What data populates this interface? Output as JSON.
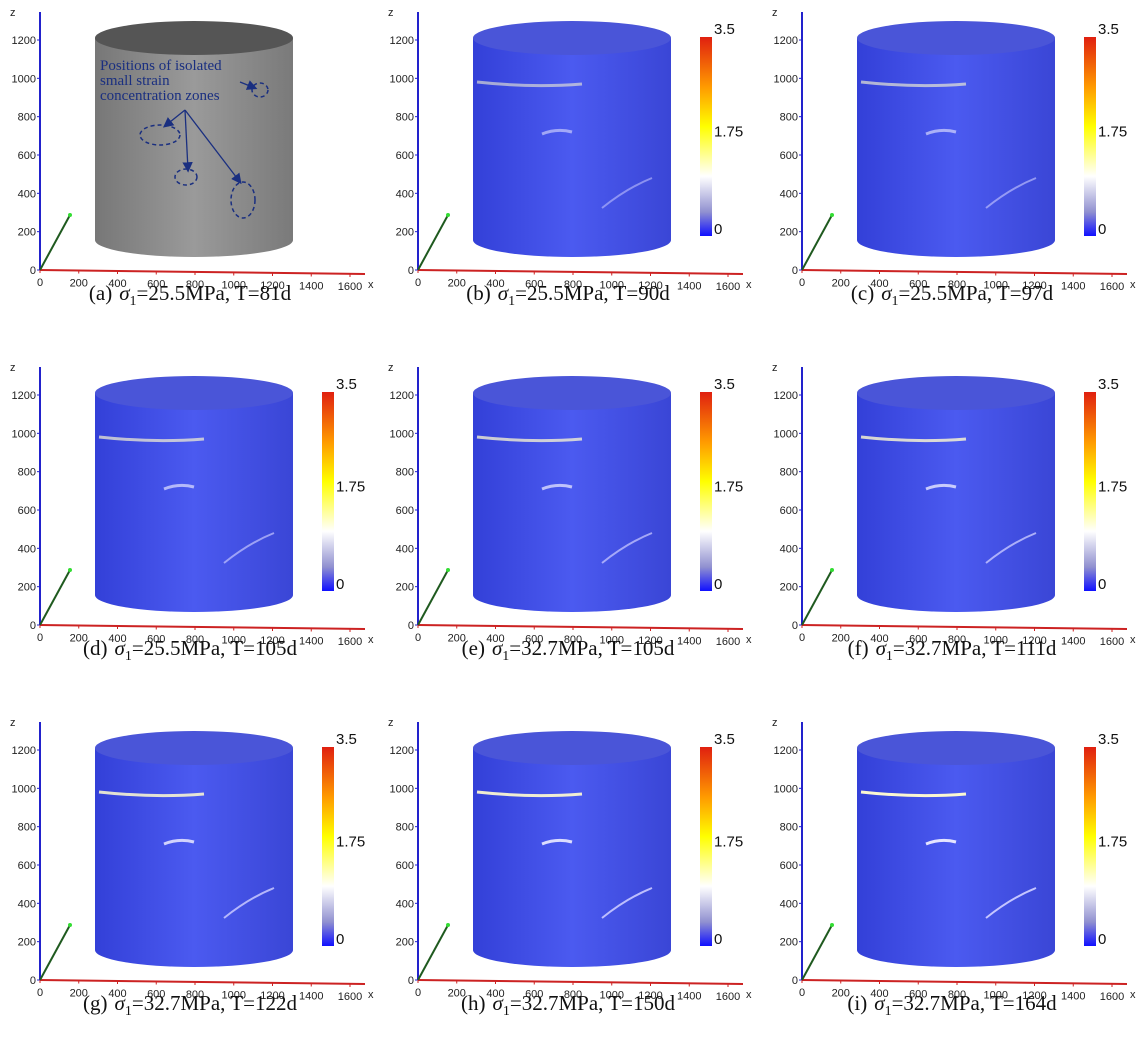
{
  "axes": {
    "z_label": "z",
    "x_label": "x",
    "zticks": [
      0,
      200,
      400,
      600,
      800,
      1000,
      1200
    ],
    "xticks": [
      0,
      200,
      400,
      600,
      800,
      1000,
      1200,
      1400,
      1600
    ]
  },
  "colorbar": {
    "max_label": "3.5",
    "mid_label": "1.75",
    "min_label": "0"
  },
  "annotation": {
    "lines": [
      "Positions of isolated",
      "small strain",
      "concentration zones"
    ]
  },
  "panels": [
    {
      "label": "(a)",
      "symbol": "σ",
      "subscript": "1",
      "condition": "=25.5MPa, T=81d"
    },
    {
      "label": "(b)",
      "symbol": "σ",
      "subscript": "1",
      "condition": "=25.5MPa, T=90d"
    },
    {
      "label": "(c)",
      "symbol": "σ",
      "subscript": "1",
      "condition": "=25.5MPa, T=97d"
    },
    {
      "label": "(d)",
      "symbol": "σ",
      "subscript": "1",
      "condition": "=25.5MPa, T=105d"
    },
    {
      "label": "(e)",
      "symbol": "σ",
      "subscript": "1",
      "condition": "=32.7MPa, T=105d"
    },
    {
      "label": "(f)",
      "symbol": "σ",
      "subscript": "1",
      "condition": "=32.7MPa, T=111d"
    },
    {
      "label": "(g)",
      "symbol": "σ",
      "subscript": "1",
      "condition": "=32.7MPa, T=122d"
    },
    {
      "label": "(h)",
      "symbol": "σ",
      "subscript": "1",
      "condition": "=32.7MPa, T=150d"
    },
    {
      "label": "(i)",
      "symbol": "σ",
      "subscript": "1",
      "condition": "=32.7MPa, T=164d"
    }
  ]
}
